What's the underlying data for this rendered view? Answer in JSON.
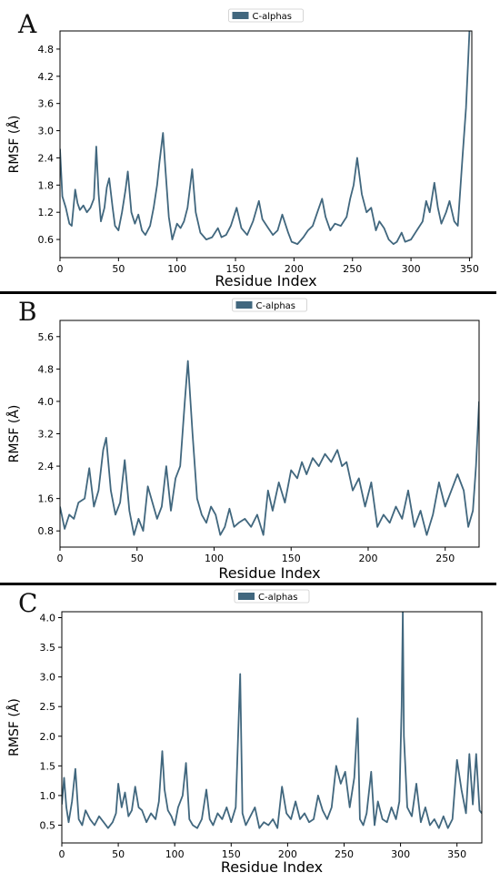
{
  "colors": {
    "series": "#41677e",
    "axis": "#000000",
    "background": "#ffffff"
  },
  "chart_data": [
    {
      "panel_label": "A",
      "type": "line",
      "xlabel": "Residue Index",
      "ylabel": "RMSF (Å)",
      "xlim": [
        0,
        352
      ],
      "ylim": [
        0.2,
        5.2
      ],
      "xticks": [
        0,
        50,
        100,
        150,
        200,
        250,
        300,
        350
      ],
      "yticks": [
        0.6,
        1.2,
        1.8,
        2.4,
        3.0,
        3.6,
        4.2,
        4.8
      ],
      "ytick_labels": [
        "0.6",
        "1.2",
        "1.8",
        "2.4",
        "3.0",
        "3.6",
        "4.2",
        "4.8"
      ],
      "legend": {
        "position": "top-center"
      },
      "series": [
        {
          "name": "C-alphas",
          "x": [
            0,
            2,
            5,
            8,
            10,
            13,
            15,
            17,
            20,
            23,
            26,
            29,
            31,
            33,
            35,
            38,
            40,
            42,
            45,
            47,
            50,
            53,
            56,
            58,
            61,
            64,
            67,
            70,
            73,
            77,
            80,
            83,
            85,
            88,
            90,
            93,
            96,
            100,
            103,
            106,
            109,
            113,
            116,
            120,
            125,
            130,
            135,
            138,
            142,
            146,
            151,
            155,
            160,
            165,
            170,
            173,
            178,
            182,
            186,
            190,
            195,
            198,
            203,
            208,
            212,
            216,
            220,
            224,
            227,
            231,
            235,
            240,
            245,
            248,
            251,
            254,
            258,
            262,
            266,
            270,
            273,
            277,
            281,
            285,
            288,
            292,
            295,
            300,
            305,
            310,
            313,
            316,
            320,
            323,
            326,
            330,
            333,
            337,
            340,
            344,
            347,
            349,
            350
          ],
          "y": [
            2.6,
            1.55,
            1.3,
            0.95,
            0.9,
            1.7,
            1.4,
            1.25,
            1.35,
            1.2,
            1.3,
            1.5,
            2.65,
            1.6,
            1.0,
            1.3,
            1.75,
            1.95,
            1.3,
            0.9,
            0.8,
            1.2,
            1.7,
            2.1,
            1.2,
            0.95,
            1.15,
            0.8,
            0.7,
            0.9,
            1.3,
            1.8,
            2.3,
            2.95,
            2.2,
            1.1,
            0.6,
            0.95,
            0.85,
            1.0,
            1.3,
            2.15,
            1.2,
            0.75,
            0.6,
            0.65,
            0.85,
            0.65,
            0.7,
            0.9,
            1.3,
            0.85,
            0.7,
            1.0,
            1.45,
            1.05,
            0.85,
            0.7,
            0.8,
            1.15,
            0.75,
            0.55,
            0.5,
            0.65,
            0.8,
            0.9,
            1.2,
            1.5,
            1.1,
            0.8,
            0.95,
            0.9,
            1.1,
            1.5,
            1.8,
            2.4,
            1.6,
            1.2,
            1.3,
            0.8,
            1.0,
            0.85,
            0.6,
            0.5,
            0.55,
            0.75,
            0.55,
            0.6,
            0.8,
            1.0,
            1.45,
            1.2,
            1.85,
            1.3,
            0.95,
            1.2,
            1.45,
            1.0,
            0.9,
            2.4,
            3.5,
            4.6,
            5.2
          ]
        }
      ]
    },
    {
      "panel_label": "B",
      "type": "line",
      "xlabel": "Residue Index",
      "ylabel": "RMSF (Å)",
      "xlim": [
        0,
        272
      ],
      "ylim": [
        0.4,
        6.0
      ],
      "xticks": [
        0,
        50,
        100,
        150,
        200,
        250
      ],
      "yticks": [
        0.8,
        1.6,
        2.4,
        3.2,
        4.0,
        4.8,
        5.6
      ],
      "ytick_labels": [
        "0.8",
        "1.6",
        "2.4",
        "3.2",
        "4.0",
        "4.8",
        "5.6"
      ],
      "legend": {
        "position": "top-center"
      },
      "series": [
        {
          "name": "C-alphas",
          "x": [
            0,
            3,
            6,
            9,
            12,
            16,
            19,
            22,
            25,
            28,
            30,
            33,
            36,
            39,
            42,
            45,
            48,
            51,
            54,
            57,
            60,
            63,
            66,
            69,
            72,
            75,
            78,
            81,
            83,
            86,
            89,
            92,
            95,
            98,
            101,
            104,
            107,
            110,
            113,
            116,
            120,
            124,
            128,
            132,
            135,
            138,
            142,
            146,
            150,
            154,
            157,
            160,
            164,
            168,
            172,
            176,
            180,
            183,
            186,
            190,
            194,
            198,
            202,
            206,
            210,
            214,
            218,
            222,
            226,
            230,
            234,
            238,
            242,
            246,
            250,
            254,
            258,
            262,
            265,
            268,
            270,
            272
          ],
          "y": [
            1.4,
            0.85,
            1.2,
            1.1,
            1.5,
            1.6,
            2.35,
            1.4,
            1.8,
            2.8,
            3.1,
            1.8,
            1.2,
            1.5,
            2.55,
            1.3,
            0.7,
            1.1,
            0.8,
            1.9,
            1.5,
            1.1,
            1.4,
            2.4,
            1.3,
            2.1,
            2.4,
            4.0,
            5.0,
            3.2,
            1.6,
            1.2,
            1.0,
            1.4,
            1.2,
            0.7,
            0.9,
            1.35,
            0.9,
            1.0,
            1.1,
            0.9,
            1.2,
            0.7,
            1.8,
            1.3,
            2.0,
            1.5,
            2.3,
            2.1,
            2.5,
            2.2,
            2.6,
            2.4,
            2.7,
            2.5,
            2.8,
            2.4,
            2.5,
            1.8,
            2.1,
            1.4,
            2.0,
            0.9,
            1.2,
            1.0,
            1.4,
            1.1,
            1.8,
            0.9,
            1.3,
            0.7,
            1.2,
            2.0,
            1.4,
            1.8,
            2.2,
            1.8,
            0.9,
            1.3,
            2.4,
            4.0
          ]
        }
      ]
    },
    {
      "panel_label": "C",
      "type": "line",
      "xlabel": "Residue Index",
      "ylabel": "RMSF (Å)",
      "xlim": [
        0,
        372
      ],
      "ylim": [
        0.2,
        4.1
      ],
      "xticks": [
        0,
        50,
        100,
        150,
        200,
        250,
        300,
        350
      ],
      "yticks": [
        0.5,
        1.0,
        1.5,
        2.0,
        2.5,
        3.0,
        3.5,
        4.0
      ],
      "ytick_labels": [
        "0.5",
        "1.0",
        "1.5",
        "2.0",
        "2.5",
        "3.0",
        "3.5",
        "4.0"
      ],
      "legend": {
        "position": "top-center"
      },
      "series": [
        {
          "name": "C-alphas",
          "x": [
            0,
            2,
            4,
            6,
            9,
            12,
            15,
            18,
            21,
            25,
            29,
            33,
            37,
            41,
            45,
            48,
            50,
            53,
            56,
            59,
            62,
            65,
            68,
            71,
            75,
            79,
            83,
            86,
            89,
            91,
            94,
            97,
            100,
            103,
            107,
            110,
            113,
            116,
            120,
            124,
            128,
            131,
            134,
            138,
            142,
            146,
            150,
            154,
            157,
            158,
            160,
            163,
            167,
            171,
            175,
            179,
            183,
            187,
            191,
            195,
            199,
            203,
            207,
            211,
            215,
            219,
            223,
            227,
            231,
            235,
            239,
            243,
            247,
            251,
            255,
            259,
            262,
            264,
            267,
            270,
            274,
            277,
            280,
            284,
            288,
            292,
            296,
            299,
            301,
            302,
            303,
            306,
            310,
            314,
            318,
            322,
            326,
            330,
            334,
            338,
            342,
            346,
            350,
            354,
            358,
            361,
            364,
            367,
            370,
            372
          ],
          "y": [
            0.85,
            1.3,
            0.8,
            0.55,
            0.9,
            1.45,
            0.6,
            0.5,
            0.75,
            0.6,
            0.5,
            0.65,
            0.55,
            0.45,
            0.55,
            0.7,
            1.2,
            0.8,
            1.05,
            0.65,
            0.75,
            1.15,
            0.8,
            0.75,
            0.55,
            0.7,
            0.6,
            0.9,
            1.75,
            1.1,
            0.75,
            0.65,
            0.5,
            0.8,
            1.0,
            1.55,
            0.6,
            0.5,
            0.45,
            0.6,
            1.1,
            0.6,
            0.5,
            0.7,
            0.6,
            0.8,
            0.55,
            0.8,
            2.5,
            3.05,
            0.7,
            0.5,
            0.65,
            0.8,
            0.45,
            0.55,
            0.5,
            0.6,
            0.45,
            1.15,
            0.7,
            0.6,
            0.9,
            0.6,
            0.7,
            0.55,
            0.6,
            1.0,
            0.75,
            0.6,
            0.8,
            1.5,
            1.2,
            1.4,
            0.8,
            1.3,
            2.3,
            0.6,
            0.5,
            0.7,
            1.4,
            0.5,
            0.9,
            0.6,
            0.55,
            0.8,
            0.6,
            0.9,
            2.5,
            4.1,
            2.0,
            0.8,
            0.65,
            1.2,
            0.55,
            0.8,
            0.5,
            0.6,
            0.45,
            0.65,
            0.45,
            0.6,
            1.6,
            1.1,
            0.7,
            1.7,
            0.85,
            1.7,
            0.75,
            0.7
          ]
        }
      ]
    }
  ]
}
